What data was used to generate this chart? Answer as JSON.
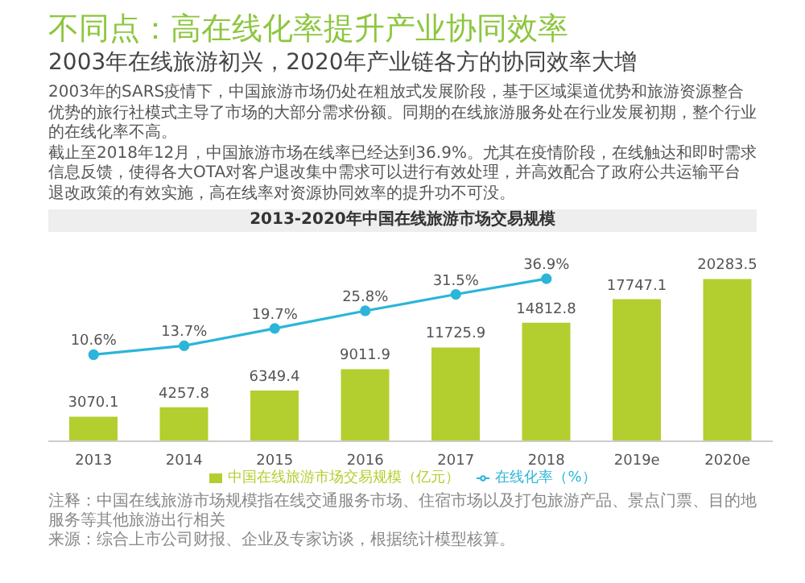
{
  "chart_data": {
    "type": "bar",
    "title": "不同点：高在线化率提升产业协同效率",
    "subtitle": "2003年在线旅游初兴，2020年产业链各方的协同效率大增",
    "annotations": [
      "2003年的SARS疫情下，中国旅游市场仍处在粗放式发展阶段，基于区域渠道优势和旅游资源整合优势的旅行社模式主导了市场的大部分需求份额。同期的在线旅游服务处在行业发展初期，整个行业的在线化率不高。",
      "截止至2018年12月，中国旅游市场在线率已经达到36.9%。尤其在疫情阶段，在线触达和即时需求信息反馈，使得各大OTA对客户退改集中需求可以进行有效处理，并高效配合了政府公共运输平台退改政策的有效实施，高在线率对资源协同效率的提升功不可没。",
      "2013-2020年中国在线旅游市场交易规模",
      "注释：中国在线旅游市场规模指在线交通服务市场、住宿市场以及打包旅游产品、景点门票、目的地服务等其他旅游出行相关",
      "来源：综合上市公司财报、企业及专家访谈，根据统计模型核算。"
    ],
    "categories": [
      "2013",
      "2014",
      "2015",
      "2016",
      "2017",
      "2018",
      "2019e",
      "2020e"
    ],
    "series": [
      {
        "name": "中国在线旅游市场交易规模（亿元）",
        "color": "#b2cf2f",
        "values": [
          3070.1,
          4257.8,
          6349.4,
          9011.9,
          11725.9,
          14812.8,
          17747.1,
          20283.5
        ],
        "value_labels": [
          "3070.1",
          "4257.8",
          "6349.4",
          "9011.9",
          "11725.9",
          "14812.8",
          "17747.1",
          "20283.5"
        ]
      },
      {
        "type": "line",
        "axis": "y2",
        "name": "在线化率（%）",
        "color": "#2bb5d9",
        "marker": "circle",
        "values": [
          10.6,
          13.7,
          19.7,
          25.8,
          31.5,
          36.9,
          null,
          null
        ],
        "value_labels": [
          "10.6%",
          "13.7%",
          "19.7%",
          "25.8%",
          "31.5%",
          "36.9%",
          null,
          null
        ]
      }
    ],
    "legend": "bottom",
    "grid": false
  }
}
